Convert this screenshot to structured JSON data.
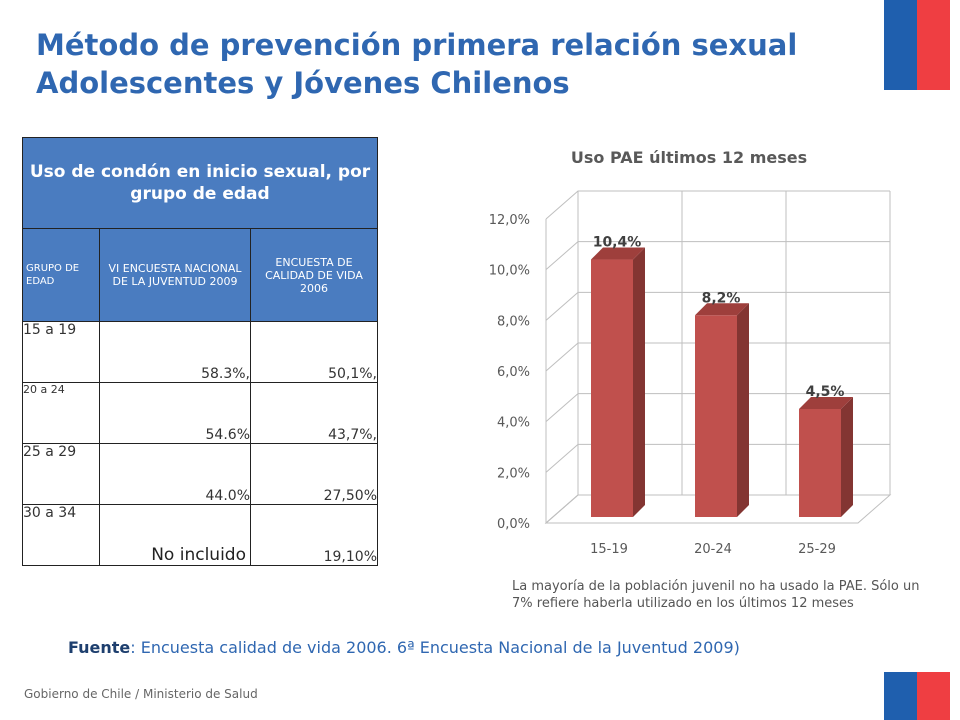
{
  "slide": {
    "title_line1": "Método de prevención primera relación sexual",
    "title_line2": "Adolescentes y Jóvenes Chilenos",
    "footer": "Gobierno de Chile / Ministerio de Salud",
    "source_label": "Fuente",
    "source_text": ": Encuesta calidad de vida 2006. 6ª Encuesta Nacional de la Juventud 2009)",
    "footnote": "La mayoría de la población juvenil no ha usado la PAE. Sólo un 7% refiere haberla utilizado en los últimos 12 meses"
  },
  "table": {
    "title": "Uso de condón en inicio sexual, por grupo de edad",
    "col1": "GRUPO DE EDAD",
    "col2": "VI ENCUESTA NACIONAL DE LA JUVENTUD 2009",
    "col3": "ENCUESTA DE CALIDAD DE VIDA 2006",
    "rows": [
      {
        "group": "15 a 19",
        "v2009": "58.3%,",
        "v2006": "50,1%,"
      },
      {
        "group": "20  a 24",
        "v2009": "54.6%",
        "v2006": "43,7%,"
      },
      {
        "group": "25 a 29",
        "v2009": "44.0%",
        "v2006": "27,50%"
      },
      {
        "group": "30 a 34",
        "v2009": "No incluido",
        "v2006": "19,10%"
      }
    ]
  },
  "chart_data": {
    "type": "bar",
    "title": "Uso PAE últimos 12 meses",
    "categories": [
      "15-19",
      "20-24",
      "25-29"
    ],
    "values": [
      10.4,
      8.2,
      4.5
    ],
    "data_labels": [
      "10,4%",
      "8,2%",
      "4,5%"
    ],
    "yticks": [
      "0,0%",
      "2,0%",
      "4,0%",
      "6,0%",
      "8,0%",
      "10,0%",
      "12,0%"
    ],
    "ylim": [
      0,
      12
    ],
    "grid": true,
    "bar_color": "#c0504d"
  }
}
